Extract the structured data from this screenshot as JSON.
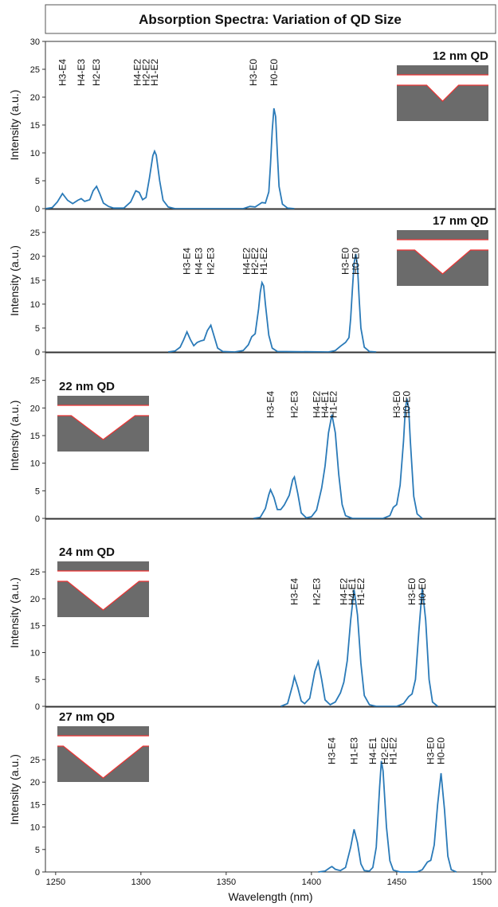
{
  "title": "Absorption Spectra: Variation of QD Size",
  "chart_data": [
    {
      "type": "line",
      "label": "12 nm QD",
      "ylabel": "Intensity (a.u.)",
      "xlim": [
        1244,
        1508
      ],
      "ylim": [
        0,
        30
      ],
      "yticks": [
        0,
        5,
        10,
        15,
        20,
        25,
        30
      ],
      "color": "#2a7ab8",
      "x": [
        1244,
        1248,
        1251,
        1254,
        1257,
        1260,
        1263,
        1265,
        1267,
        1270,
        1272,
        1274,
        1276,
        1278,
        1281,
        1284,
        1290,
        1294,
        1297,
        1299,
        1301,
        1303,
        1305,
        1307,
        1308,
        1309,
        1311,
        1313,
        1316,
        1320,
        1360,
        1364,
        1367,
        1369,
        1371,
        1373,
        1375,
        1376,
        1377,
        1378,
        1379,
        1380,
        1381,
        1383,
        1386,
        1390
      ],
      "values": [
        0,
        0.2,
        1.2,
        2.7,
        1.5,
        0.9,
        1.5,
        1.8,
        1.3,
        1.6,
        3.2,
        4.0,
        2.6,
        1.0,
        0.4,
        0.1,
        0.1,
        1.2,
        3.2,
        2.9,
        1.6,
        2.0,
        5.5,
        9.5,
        10.3,
        9.6,
        5.0,
        1.5,
        0.3,
        0,
        0,
        0.4,
        0.3,
        0.7,
        1.1,
        1.0,
        3.0,
        8,
        14,
        18.0,
        16.5,
        10,
        4,
        0.8,
        0.1,
        0
      ],
      "annotations": [
        {
          "text": "H3-E4",
          "x": 1254,
          "color": "#e03030"
        },
        {
          "text": "H4-E3",
          "x": 1265,
          "color": "#e03030"
        },
        {
          "text": "H2-E3",
          "x": 1274,
          "color": "#e03030"
        },
        {
          "text": "H4-E2",
          "x": 1298,
          "color": "#e03030"
        },
        {
          "text": "H2-E2",
          "x": 1303,
          "color": "#e03030"
        },
        {
          "text": "H1-E2",
          "x": 1308,
          "color": "#e03030"
        },
        {
          "text": "H3-E0",
          "x": 1366,
          "color": "#111111"
        },
        {
          "text": "H0-E0",
          "x": 1378,
          "color": "#111111"
        }
      ]
    },
    {
      "type": "line",
      "label": "17 nm QD",
      "ylabel": "Intensity (a.u.)",
      "xlim": [
        1244,
        1508
      ],
      "ylim": [
        0,
        29.8
      ],
      "yticks": [
        0,
        5,
        10,
        15,
        20,
        25
      ],
      "color": "#2a7ab8",
      "x": [
        1316,
        1320,
        1323,
        1325,
        1327,
        1329,
        1331,
        1333,
        1335,
        1337,
        1339,
        1341,
        1343,
        1345,
        1348,
        1355,
        1360,
        1363,
        1365,
        1367,
        1369,
        1370,
        1371,
        1372,
        1373,
        1375,
        1377,
        1380,
        1410,
        1414,
        1417,
        1420,
        1422,
        1423,
        1424,
        1425,
        1426,
        1427,
        1428,
        1429,
        1431,
        1434,
        1438
      ],
      "values": [
        0,
        0.2,
        1.0,
        2.5,
        4.2,
        2.6,
        1.3,
        2.0,
        2.3,
        2.5,
        4.5,
        5.6,
        3.2,
        0.8,
        0.1,
        0,
        0.3,
        1.5,
        3.2,
        3.8,
        9,
        12.5,
        14.5,
        13.8,
        10,
        3.5,
        0.8,
        0.1,
        0,
        0.3,
        1.2,
        2.0,
        3.0,
        7,
        13,
        18.5,
        20.5,
        18,
        11,
        5,
        1,
        0.1,
        0
      ],
      "annotations": [
        {
          "text": "H3-E4",
          "x": 1327,
          "color": "#e03030"
        },
        {
          "text": "H4-E3",
          "x": 1334,
          "color": "#e03030"
        },
        {
          "text": "H2-E3",
          "x": 1341,
          "color": "#e03030"
        },
        {
          "text": "H4-E2",
          "x": 1362,
          "color": "#e03030"
        },
        {
          "text": "H2-E2",
          "x": 1367,
          "color": "#e03030"
        },
        {
          "text": "H1-E2",
          "x": 1372,
          "color": "#e03030"
        },
        {
          "text": "H3-E0",
          "x": 1420,
          "color": "#111111"
        },
        {
          "text": "H0-E0",
          "x": 1426,
          "color": "#111111"
        }
      ]
    },
    {
      "type": "line",
      "label": "22 nm QD",
      "ylabel": "Intensity (a.u.)",
      "xlim": [
        1244,
        1508
      ],
      "ylim": [
        0,
        30
      ],
      "yticks": [
        0,
        5,
        10,
        15,
        20,
        25
      ],
      "color": "#2a7ab8",
      "x": [
        1366,
        1370,
        1373,
        1375,
        1376,
        1378,
        1380,
        1382,
        1384,
        1387,
        1389,
        1390,
        1392,
        1394,
        1397,
        1400,
        1403,
        1406,
        1408,
        1410,
        1412,
        1414,
        1416,
        1418,
        1420,
        1424,
        1442,
        1446,
        1448,
        1450,
        1452,
        1454,
        1455,
        1456,
        1457,
        1458,
        1460,
        1462,
        1465
      ],
      "values": [
        0,
        0.2,
        1.8,
        4.3,
        5.2,
        3.8,
        1.6,
        1.6,
        2.4,
        4.2,
        7.0,
        7.5,
        4.5,
        1.0,
        0.1,
        0.3,
        1.5,
        5.5,
        9.5,
        15.5,
        18.8,
        15.5,
        8,
        2.5,
        0.5,
        0,
        0,
        0.5,
        2.0,
        2.5,
        6,
        14,
        19.5,
        21.7,
        20,
        14,
        4,
        0.8,
        0
      ],
      "annotations": [
        {
          "text": "H3-E4",
          "x": 1376,
          "color": "#e03030"
        },
        {
          "text": "H2-E3",
          "x": 1390,
          "color": "#e03030"
        },
        {
          "text": "H4-E2",
          "x": 1403,
          "color": "#111111"
        },
        {
          "text": "H4-E1",
          "x": 1408,
          "color": "#111111"
        },
        {
          "text": "H1-E2",
          "x": 1413,
          "color": "#111111"
        },
        {
          "text": "H3-E0",
          "x": 1450,
          "color": "#111111"
        },
        {
          "text": "H0-E0",
          "x": 1456,
          "color": "#111111"
        }
      ]
    },
    {
      "type": "line",
      "label": "24 nm QD",
      "ylabel": "Intensity (a.u.)",
      "xlim": [
        1244,
        1508
      ],
      "ylim": [
        0,
        34.8
      ],
      "yticks": [
        0,
        5,
        10,
        15,
        20,
        25
      ],
      "color": "#2a7ab8",
      "x": [
        1382,
        1386,
        1389,
        1390,
        1392,
        1394,
        1396,
        1399,
        1402,
        1404,
        1406,
        1408,
        1411,
        1414,
        1417,
        1419,
        1421,
        1423,
        1425,
        1427,
        1429,
        1431,
        1434,
        1438,
        1450,
        1454,
        1457,
        1459,
        1461,
        1463,
        1465,
        1467,
        1469,
        1471,
        1474
      ],
      "values": [
        0,
        0.5,
        4,
        5.5,
        3.5,
        1.0,
        0.5,
        1.5,
        6.5,
        8.3,
        5.0,
        1.2,
        0.3,
        0.8,
        2.5,
        4.5,
        8.5,
        16,
        21.7,
        17,
        8,
        2,
        0.3,
        0,
        0,
        0.5,
        1.8,
        2.3,
        5,
        14,
        22.0,
        16,
        5,
        0.8,
        0
      ],
      "annotations": [
        {
          "text": "H3-E4",
          "x": 1390,
          "color": "#e03030"
        },
        {
          "text": "H2-E3",
          "x": 1403,
          "color": "#111111"
        },
        {
          "text": "H4-E2",
          "x": 1419,
          "color": "#111111"
        },
        {
          "text": "H4-E1",
          "x": 1424,
          "color": "#111111"
        },
        {
          "text": "H1-E2",
          "x": 1429,
          "color": "#111111"
        },
        {
          "text": "H3-E0",
          "x": 1459,
          "color": "#111111"
        },
        {
          "text": "H0-E0",
          "x": 1465,
          "color": "#111111"
        }
      ]
    },
    {
      "type": "line",
      "label": "27 nm QD",
      "ylabel": "Intensity (a.u.)",
      "xlabel": "Wavelength (nm)",
      "xlim": [
        1244,
        1508
      ],
      "xticks": [
        1250,
        1300,
        1350,
        1400,
        1450,
        1500
      ],
      "ylim": [
        0,
        36.7
      ],
      "yticks": [
        0,
        5,
        10,
        15,
        20,
        25
      ],
      "color": "#2a7ab8",
      "x": [
        1404,
        1408,
        1411,
        1412,
        1414,
        1417,
        1420,
        1423,
        1425,
        1427,
        1429,
        1431,
        1434,
        1436,
        1438,
        1440,
        1441,
        1442,
        1444,
        1446,
        1448,
        1452,
        1462,
        1465,
        1468,
        1470,
        1472,
        1474,
        1476,
        1478,
        1480,
        1482,
        1485
      ],
      "values": [
        0,
        0.2,
        1.0,
        1.2,
        0.6,
        0.3,
        1.0,
        5.5,
        9.5,
        6.5,
        1.8,
        0.3,
        0.2,
        1.0,
        5.5,
        19,
        24.7,
        22.5,
        10,
        2.5,
        0.4,
        0,
        0,
        0.5,
        2.2,
        2.6,
        6,
        15,
        22.0,
        14,
        3.5,
        0.5,
        0
      ],
      "annotations": [
        {
          "text": "H3-E4",
          "x": 1412,
          "color": "#111111"
        },
        {
          "text": "H1-E3",
          "x": 1425,
          "color": "#111111"
        },
        {
          "text": "H4-E1",
          "x": 1436,
          "color": "#111111"
        },
        {
          "text": "H2-E2",
          "x": 1443,
          "color": "#111111"
        },
        {
          "text": "H1-E2",
          "x": 1448,
          "color": "#111111"
        },
        {
          "text": "H3-E0",
          "x": 1470,
          "color": "#111111"
        },
        {
          "text": "H0-E0",
          "x": 1476,
          "color": "#111111"
        }
      ]
    }
  ]
}
